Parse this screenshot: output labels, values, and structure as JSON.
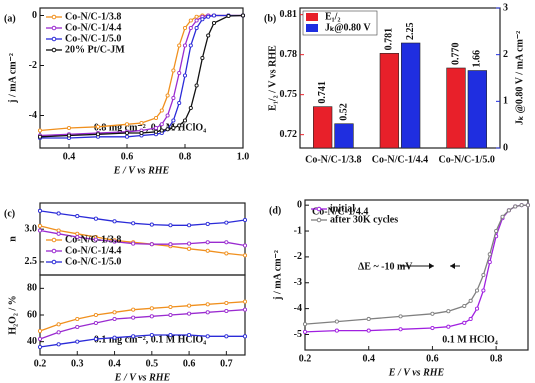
{
  "chart_data": [
    {
      "type": "line",
      "panel": "(a)",
      "xlabel": "E / V vs RHE",
      "ylabel": "j / mA cm⁻²",
      "annotations": [
        "0.8 mg cm⁻², 0.1 M HClO₄"
      ],
      "legend": "upper left",
      "xlim": [
        0.3,
        1.0
      ],
      "xticks": [
        0.4,
        0.6,
        0.8,
        {
          "value": 1,
          "label": "1.0"
        }
      ],
      "ylim": [
        -5.3,
        0.3
      ],
      "yticks": [
        -4,
        -2,
        0
      ],
      "x": [
        0.3,
        0.4,
        0.5,
        0.6,
        0.65,
        0.7,
        0.72,
        0.74,
        0.76,
        0.78,
        0.8,
        0.82,
        0.84,
        0.86,
        0.88,
        0.9,
        0.95,
        1.0
      ],
      "series": [
        {
          "name": "Co-N/C-1/3.8",
          "color": "#f0901e",
          "values": [
            -4.6,
            -4.5,
            -4.45,
            -4.35,
            -4.3,
            -4.1,
            -3.8,
            -3.2,
            -2.2,
            -1.2,
            -0.5,
            -0.2,
            -0.05,
            0,
            0,
            0,
            0,
            0
          ]
        },
        {
          "name": "Co-N/C-1/4.4",
          "color": "#9a2bd0",
          "values": [
            -4.8,
            -4.75,
            -4.7,
            -4.65,
            -4.6,
            -4.5,
            -4.35,
            -4.0,
            -3.3,
            -2.3,
            -1.2,
            -0.5,
            -0.2,
            -0.05,
            0,
            0,
            0,
            0
          ]
        },
        {
          "name": "Co-N/C-1/5.0",
          "color": "#2b2bd8",
          "values": [
            -4.9,
            -4.9,
            -4.85,
            -4.85,
            -4.8,
            -4.75,
            -4.7,
            -4.55,
            -4.2,
            -3.5,
            -2.4,
            -1.2,
            -0.5,
            -0.15,
            -0.05,
            0,
            0,
            0
          ]
        },
        {
          "name": "20% Pt/C-JM",
          "color": "#111111",
          "values": [
            -4.85,
            -4.8,
            -4.75,
            -4.7,
            -4.7,
            -4.65,
            -4.6,
            -4.55,
            -4.5,
            -4.4,
            -4.2,
            -3.7,
            -2.8,
            -1.7,
            -0.8,
            -0.3,
            -0.02,
            0
          ]
        }
      ]
    },
    {
      "type": "bar",
      "panel": "(b)",
      "ylabel": "E₁/₂ / V vs RHE",
      "y2label": "Jₖ @0.80 V / mA cm⁻²",
      "legend": "upper left",
      "categories": [
        "Co-N/C-1/3.8",
        "Co-N/C-1/4.4",
        "Co-N/C-1/5.0"
      ],
      "ylim": [
        0.71,
        0.815
      ],
      "yticks": [
        0.72,
        0.75,
        0.78,
        0.81
      ],
      "y2lim": [
        0,
        3
      ],
      "y2ticks": [
        0,
        1,
        2,
        3
      ],
      "series": [
        {
          "name": "E₁/₂",
          "color": "#e8202a",
          "values": [
            0.741,
            0.781,
            0.77
          ],
          "value_labels": [
            "0.741",
            "0.781",
            "0.770"
          ]
        },
        {
          "name": "Jₖ@0.80 V",
          "color": "#1f2ee0",
          "axis": "y2",
          "values": [
            0.52,
            2.25,
            1.66
          ],
          "value_labels": [
            "0.52",
            "2.25",
            "1.66"
          ]
        }
      ]
    },
    {
      "type": "line",
      "panel": "(c)",
      "ylabel": "n",
      "legend": "lower left",
      "xlim": [
        0.2,
        0.75
      ],
      "ylim": [
        2.3,
        3.4
      ],
      "yticks": [
        2.5,
        {
          "value": 3,
          "label": "3.0"
        }
      ],
      "x": [
        0.2,
        0.25,
        0.3,
        0.35,
        0.4,
        0.45,
        0.5,
        0.55,
        0.6,
        0.65,
        0.7,
        0.75
      ],
      "series": [
        {
          "name": "Co-N/C-1/3.8",
          "color": "#f0901e",
          "values": [
            3.05,
            2.98,
            2.93,
            2.88,
            2.83,
            2.8,
            2.77,
            2.74,
            2.7,
            2.67,
            2.63,
            2.6
          ]
        },
        {
          "name": "Co-N/C-1/4.4",
          "color": "#9a2bd0",
          "values": [
            2.98,
            2.93,
            2.88,
            2.84,
            2.81,
            2.78,
            2.77,
            2.77,
            2.78,
            2.8,
            2.8,
            2.75
          ]
        },
        {
          "name": "Co-N/C-1/5.0",
          "color": "#2b2bd8",
          "values": [
            3.28,
            3.24,
            3.2,
            3.16,
            3.12,
            3.09,
            3.07,
            3.06,
            3.06,
            3.08,
            3.1,
            3.14
          ]
        }
      ]
    },
    {
      "type": "line",
      "xlabel": "E / V vs RHE",
      "ylabel": "H₂O₂ / %",
      "annotations": [
        "0.1 mg cm⁻², 0.1 M HClO₄"
      ],
      "xlim": [
        0.2,
        0.75
      ],
      "xticks": [
        0.2,
        0.3,
        0.4,
        0.5,
        0.6,
        0.7
      ],
      "ylim": [
        30,
        90
      ],
      "yticks": [
        40,
        60,
        80
      ],
      "x": [
        0.2,
        0.25,
        0.3,
        0.35,
        0.4,
        0.45,
        0.5,
        0.55,
        0.6,
        0.65,
        0.7,
        0.75
      ],
      "series": [
        {
          "color": "#f0901e",
          "values": [
            48,
            53,
            57,
            60,
            62,
            64,
            65,
            66,
            67,
            68,
            69,
            70
          ]
        },
        {
          "color": "#9a2bd0",
          "values": [
            42,
            47,
            51,
            54,
            57,
            58,
            59,
            60,
            61,
            62,
            63,
            64
          ]
        },
        {
          "color": "#2b2bd8",
          "values": [
            36,
            38,
            40,
            42,
            43,
            44,
            45,
            45,
            45,
            44,
            44,
            44
          ]
        }
      ]
    },
    {
      "type": "line",
      "panel": "(d)",
      "xlabel": "E / V vs RHE",
      "ylabel": "j / mA cm⁻²",
      "annotations": [
        "Co-N/C-1/4.4",
        "ΔE ~ -10 mV",
        "0.1 M HClO₄"
      ],
      "legend": "upper left",
      "xlim": [
        0.2,
        0.9
      ],
      "xticks": [
        0.2,
        0.4,
        0.6,
        0.8
      ],
      "ylim": [
        -5.6,
        0.2
      ],
      "yticks": [
        -5,
        -4,
        -3,
        -2,
        -1,
        0
      ],
      "x": [
        0.2,
        0.3,
        0.4,
        0.5,
        0.6,
        0.65,
        0.7,
        0.72,
        0.74,
        0.76,
        0.78,
        0.8,
        0.82,
        0.84,
        0.86,
        0.88,
        0.9
      ],
      "series": [
        {
          "name": "initial",
          "color": "#a020e0",
          "values": [
            -4.9,
            -4.85,
            -4.85,
            -4.8,
            -4.75,
            -4.7,
            -4.55,
            -4.4,
            -4.0,
            -3.3,
            -2.2,
            -1.2,
            -0.5,
            -0.2,
            -0.05,
            0,
            0
          ]
        },
        {
          "name": "after 30K cycles",
          "color": "#808080",
          "values": [
            -4.6,
            -4.5,
            -4.4,
            -4.3,
            -4.2,
            -4.1,
            -3.9,
            -3.7,
            -3.3,
            -2.7,
            -1.9,
            -1.0,
            -0.45,
            -0.2,
            -0.05,
            0,
            0
          ]
        }
      ]
    }
  ]
}
